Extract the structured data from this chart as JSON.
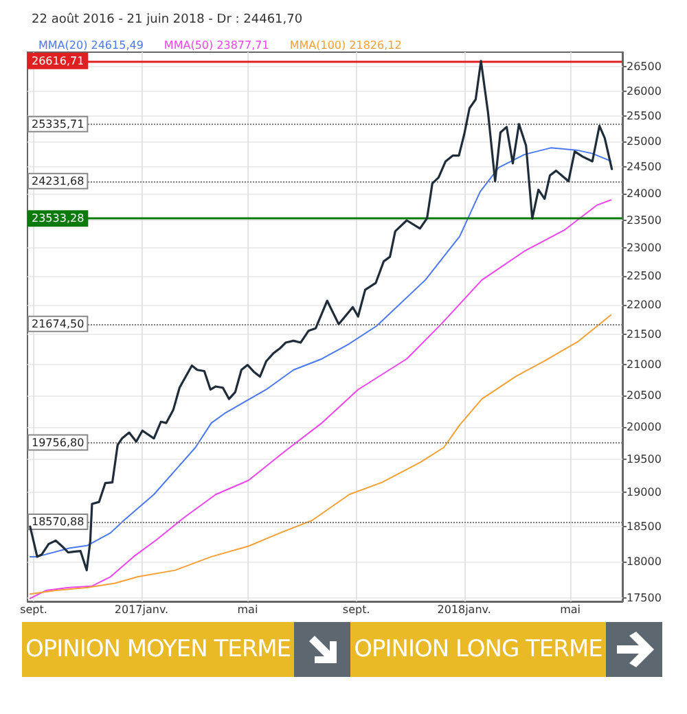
{
  "chart_data": {
    "type": "line",
    "title": "22 août 2016 - 21 juin 2018 - Dr : 24461,70",
    "log": true,
    "grid": true,
    "legend": "top left",
    "line_style": "solid",
    "xlim": [
      "2016-08-25",
      "2018-06-29"
    ],
    "xticks": [
      {
        "value": "2016-09-01",
        "label": "sept."
      },
      {
        "value": "2017-01-01",
        "label": "2017janv."
      },
      {
        "value": "2017-05-01",
        "label": "mai"
      },
      {
        "value": "2017-09-01",
        "label": "sept."
      },
      {
        "value": "2018-01-01",
        "label": "2018janv."
      },
      {
        "value": "2018-05-01",
        "label": "mai"
      }
    ],
    "ylim": [
      17450,
      26800
    ],
    "yticks": [
      17500,
      18000,
      18500,
      19000,
      19500,
      20000,
      20500,
      21000,
      21500,
      22000,
      22500,
      23000,
      23500,
      24000,
      24500,
      25000,
      25500,
      26000,
      26500
    ],
    "series": [
      {
        "color": "#1f2d3a",
        "x": [
          "2016-08-28",
          "2016-09-05",
          "2016-09-10",
          "2016-09-18",
          "2016-09-26",
          "2016-10-03",
          "2016-10-10",
          "2016-10-16",
          "2016-10-24",
          "2016-10-31",
          "2016-11-04",
          "2016-11-06",
          "2016-11-14",
          "2016-11-21",
          "2016-11-29",
          "2016-12-05",
          "2016-12-10",
          "2016-12-18",
          "2016-12-26",
          "2017-01-02",
          "2017-01-15",
          "2017-01-23",
          "2017-01-29",
          "2017-02-06",
          "2017-02-13",
          "2017-02-20",
          "2017-02-27",
          "2017-03-05",
          "2017-03-13",
          "2017-03-20",
          "2017-03-26",
          "2017-04-03",
          "2017-04-10",
          "2017-04-17",
          "2017-04-24",
          "2017-05-01",
          "2017-05-08",
          "2017-05-15",
          "2017-05-22",
          "2017-05-30",
          "2017-06-07",
          "2017-06-13",
          "2017-06-22",
          "2017-06-30",
          "2017-07-09",
          "2017-07-17",
          "2017-07-30",
          "2017-08-12",
          "2017-08-28",
          "2017-09-03",
          "2017-09-11",
          "2017-09-23",
          "2017-10-02",
          "2017-10-09",
          "2017-10-15",
          "2017-10-28",
          "2017-11-12",
          "2017-11-20",
          "2017-11-26",
          "2017-12-03",
          "2017-12-11",
          "2017-12-19",
          "2017-12-26",
          "2018-01-01",
          "2018-01-07",
          "2018-01-14",
          "2018-01-20",
          "2018-01-28",
          "2018-02-05",
          "2018-02-11",
          "2018-02-18",
          "2018-02-25",
          "2018-03-04",
          "2018-03-12",
          "2018-03-19",
          "2018-03-26",
          "2018-04-02",
          "2018-04-08",
          "2018-04-15",
          "2018-04-29",
          "2018-05-06",
          "2018-05-15",
          "2018-05-26",
          "2018-06-03",
          "2018-06-09",
          "2018-06-17"
        ],
        "values": [
          18500,
          18070,
          18100,
          18250,
          18300,
          18220,
          18130,
          18140,
          18150,
          17880,
          18290,
          18830,
          18860,
          19140,
          19150,
          19720,
          19820,
          19910,
          19770,
          19940,
          19820,
          20080,
          20060,
          20270,
          20620,
          20800,
          20980,
          20910,
          20890,
          20590,
          20640,
          20620,
          20440,
          20550,
          20910,
          20990,
          20880,
          20800,
          21050,
          21180,
          21270,
          21360,
          21390,
          21360,
          21560,
          21600,
          22070,
          21670,
          21960,
          21800,
          22260,
          22380,
          22760,
          22840,
          23300,
          23500,
          23350,
          23540,
          24190,
          24300,
          24610,
          24720,
          24720,
          25130,
          25650,
          25830,
          26617,
          25560,
          24230,
          25170,
          25280,
          24570,
          25336,
          24910,
          23533,
          24070,
          23900,
          24340,
          24430,
          24230,
          24800,
          24700,
          24610,
          25300,
          25060,
          24462
        ]
      },
      {
        "name": "MMA(20) 24615,49",
        "color": "#4a78f0",
        "x": [
          "2016-08-28",
          "2016-09-05",
          "2016-10-11",
          "2016-11-01",
          "2016-11-27",
          "2016-12-12",
          "2017-01-15",
          "2017-02-10",
          "2017-03-03",
          "2017-03-21",
          "2017-04-06",
          "2017-05-02",
          "2017-05-22",
          "2017-06-22",
          "2017-07-24",
          "2017-08-24",
          "2017-09-24",
          "2017-11-18",
          "2017-12-27",
          "2018-01-19",
          "2018-02-09",
          "2018-03-10",
          "2018-04-09",
          "2018-05-10",
          "2018-05-26",
          "2018-06-16"
        ],
        "values": [
          18070,
          18070,
          18190,
          18230,
          18410,
          18590,
          18970,
          19360,
          19680,
          20060,
          20220,
          20430,
          20590,
          20910,
          21090,
          21340,
          21640,
          22430,
          23210,
          24030,
          24490,
          24740,
          24870,
          24820,
          24760,
          24615
        ]
      },
      {
        "name": "MMA(50) 23877,71",
        "color": "#ee44ee",
        "x": [
          "2016-08-28",
          "2016-09-15",
          "2016-10-11",
          "2016-11-06",
          "2016-11-27",
          "2016-12-23",
          "2017-01-18",
          "2017-02-18",
          "2017-03-26",
          "2017-05-02",
          "2017-06-12",
          "2017-07-24",
          "2017-09-03",
          "2017-10-28",
          "2017-12-06",
          "2018-01-21",
          "2018-03-10",
          "2018-04-25",
          "2018-05-31",
          "2018-06-16"
        ],
        "values": [
          17490,
          17600,
          17640,
          17660,
          17790,
          18070,
          18310,
          18630,
          18970,
          19180,
          19620,
          20060,
          20590,
          21090,
          21670,
          22430,
          22940,
          23330,
          23780,
          23878
        ]
      },
      {
        "name": "MMA(100) 21826,12",
        "color": "#f5a035",
        "x": [
          "2016-08-28",
          "2016-09-26",
          "2016-11-01",
          "2016-12-02",
          "2016-12-28",
          "2017-02-08",
          "2017-03-21",
          "2017-05-02",
          "2017-06-07",
          "2017-07-13",
          "2017-08-24",
          "2017-09-30",
          "2017-11-12",
          "2017-12-09",
          "2017-12-27",
          "2018-01-21",
          "2018-02-28",
          "2018-04-01",
          "2018-05-10",
          "2018-06-16"
        ],
        "values": [
          17550,
          17600,
          17640,
          17700,
          17790,
          17880,
          18070,
          18220,
          18410,
          18590,
          18970,
          19150,
          19450,
          19680,
          20030,
          20440,
          20800,
          21050,
          21380,
          21826
        ]
      }
    ],
    "ref_lines": [
      {
        "axis": "y",
        "value": 26616.71,
        "label": "26616,71",
        "color": "#e02020",
        "line_style": "solid"
      },
      {
        "axis": "y",
        "value": 25335.71,
        "label": "25335,71",
        "color": "#808080",
        "line_style": "dotted"
      },
      {
        "axis": "y",
        "value": 24231.68,
        "label": "24231,68",
        "color": "#808080",
        "line_style": "dotted"
      },
      {
        "axis": "y",
        "value": 23533.28,
        "label": "23533,28",
        "color": "#0a7a0a",
        "line_style": "solid"
      },
      {
        "axis": "y",
        "value": 21674.5,
        "label": "21674,50",
        "color": "#808080",
        "line_style": "dotted"
      },
      {
        "axis": "y",
        "value": 19756.8,
        "label": "19756,80",
        "color": "#808080",
        "line_style": "dotted"
      },
      {
        "axis": "y",
        "value": 18570.88,
        "label": "18570,88",
        "color": "#808080",
        "line_style": "dotted"
      }
    ],
    "annotations": [
      "OPINION MOYEN TERME",
      "OPINION LONG TERME"
    ]
  }
}
